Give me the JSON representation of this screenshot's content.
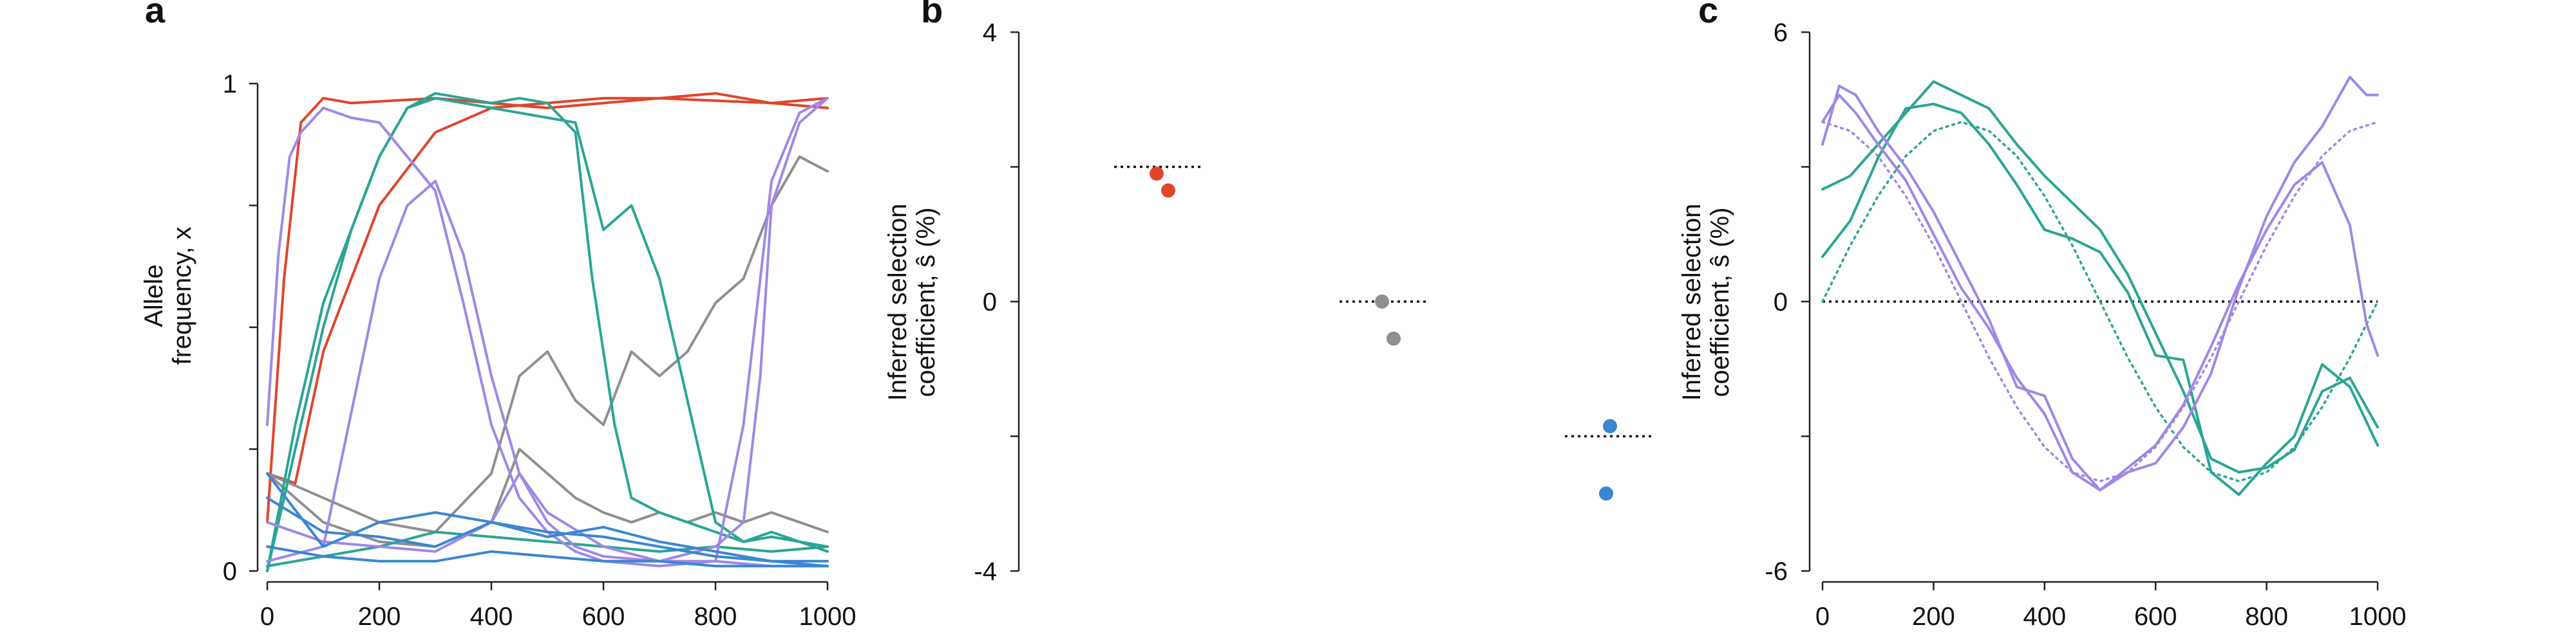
{
  "colors": {
    "red": "#e0452b",
    "gray": "#8f8f8f",
    "teal": "#2aa594",
    "purple": "#a087e6",
    "blue": "#3a86d0",
    "axis": "#222222"
  },
  "chart_data": [
    {
      "panel_label": "a",
      "type": "line",
      "xlabel": "",
      "ylabel_line1": "Allele",
      "ylabel_line2": "frequency, x",
      "xlim": [
        0,
        1000
      ],
      "ylim": [
        0,
        1
      ],
      "xticks": [
        "0",
        "200",
        "400",
        "600",
        "800",
        "1000"
      ],
      "yticks": [
        "0",
        "1"
      ],
      "grid": false,
      "series": [
        {
          "color": "red",
          "x": [
            0,
            50,
            100,
            150,
            200,
            300,
            400,
            500,
            600,
            700,
            800,
            900,
            1000
          ],
          "y": [
            0.2,
            0.18,
            0.45,
            0.6,
            0.75,
            0.9,
            0.95,
            0.96,
            0.97,
            0.97,
            0.98,
            0.96,
            0.95
          ]
        },
        {
          "color": "red",
          "x": [
            0,
            30,
            60,
            100,
            150,
            300,
            500,
            700,
            900,
            1000
          ],
          "y": [
            0.1,
            0.6,
            0.92,
            0.97,
            0.96,
            0.97,
            0.95,
            0.97,
            0.96,
            0.97
          ]
        },
        {
          "color": "gray",
          "x": [
            0,
            100,
            200,
            300,
            400,
            450,
            500,
            550,
            600,
            650,
            700,
            750,
            800,
            850,
            900,
            950,
            1000
          ],
          "y": [
            0.2,
            0.15,
            0.1,
            0.08,
            0.2,
            0.4,
            0.45,
            0.35,
            0.3,
            0.45,
            0.4,
            0.45,
            0.55,
            0.6,
            0.75,
            0.85,
            0.82
          ]
        },
        {
          "color": "gray",
          "x": [
            0,
            100,
            200,
            300,
            400,
            450,
            500,
            550,
            600,
            650,
            700,
            750,
            800,
            850,
            900,
            950,
            1000
          ],
          "y": [
            0.2,
            0.1,
            0.06,
            0.05,
            0.1,
            0.25,
            0.2,
            0.15,
            0.12,
            0.1,
            0.12,
            0.1,
            0.12,
            0.1,
            0.12,
            0.1,
            0.08
          ]
        },
        {
          "color": "teal",
          "x": [
            0,
            50,
            100,
            150,
            200,
            250,
            300,
            350,
            400,
            450,
            500,
            550,
            600,
            650,
            700,
            750,
            800,
            850,
            900,
            950,
            1000
          ],
          "y": [
            0.0,
            0.3,
            0.55,
            0.7,
            0.85,
            0.95,
            0.97,
            0.96,
            0.95,
            0.94,
            0.93,
            0.92,
            0.7,
            0.75,
            0.6,
            0.35,
            0.1,
            0.06,
            0.08,
            0.06,
            0.04
          ]
        },
        {
          "color": "teal",
          "x": [
            0,
            50,
            100,
            150,
            200,
            250,
            300,
            350,
            400,
            450,
            500,
            550,
            580,
            620,
            650,
            700,
            750,
            800,
            850,
            900,
            950,
            1000
          ],
          "y": [
            0.0,
            0.25,
            0.5,
            0.7,
            0.85,
            0.95,
            0.98,
            0.97,
            0.96,
            0.97,
            0.96,
            0.9,
            0.6,
            0.3,
            0.15,
            0.12,
            0.1,
            0.08,
            0.06,
            0.07,
            0.06,
            0.05
          ]
        },
        {
          "color": "teal",
          "x": [
            0,
            100,
            200,
            300,
            400,
            500,
            600,
            700,
            800,
            900,
            1000
          ],
          "y": [
            0.01,
            0.03,
            0.05,
            0.08,
            0.07,
            0.06,
            0.05,
            0.04,
            0.05,
            0.04,
            0.05
          ]
        },
        {
          "color": "purple",
          "x": [
            0,
            20,
            40,
            60,
            100,
            150,
            200,
            250,
            300,
            350,
            400,
            450,
            500,
            550,
            600,
            700,
            800,
            850,
            900,
            950,
            1000
          ],
          "y": [
            0.3,
            0.65,
            0.85,
            0.9,
            0.95,
            0.93,
            0.92,
            0.85,
            0.78,
            0.55,
            0.3,
            0.15,
            0.08,
            0.04,
            0.02,
            0.01,
            0.02,
            0.3,
            0.8,
            0.94,
            0.97
          ]
        },
        {
          "color": "purple",
          "x": [
            0,
            100,
            200,
            250,
            300,
            350,
            400,
            450,
            500,
            550,
            600,
            700,
            800,
            850,
            880,
            900,
            950,
            1000
          ],
          "y": [
            0.02,
            0.05,
            0.6,
            0.75,
            0.8,
            0.65,
            0.4,
            0.2,
            0.1,
            0.05,
            0.03,
            0.02,
            0.05,
            0.1,
            0.4,
            0.75,
            0.92,
            0.97
          ]
        },
        {
          "color": "purple",
          "x": [
            0,
            100,
            200,
            300,
            400,
            450,
            500,
            600,
            700,
            800,
            900,
            1000
          ],
          "y": [
            0.1,
            0.06,
            0.05,
            0.04,
            0.1,
            0.2,
            0.12,
            0.05,
            0.02,
            0.02,
            0.01,
            0.01
          ]
        },
        {
          "color": "blue",
          "x": [
            0,
            100,
            200,
            300,
            400,
            500,
            600,
            700,
            800,
            900,
            1000
          ],
          "y": [
            0.15,
            0.08,
            0.07,
            0.05,
            0.1,
            0.08,
            0.07,
            0.05,
            0.03,
            0.02,
            0.01
          ]
        },
        {
          "color": "blue",
          "x": [
            0,
            100,
            200,
            300,
            400,
            500,
            600,
            700,
            800,
            900,
            1000
          ],
          "y": [
            0.2,
            0.05,
            0.1,
            0.12,
            0.1,
            0.07,
            0.09,
            0.06,
            0.04,
            0.02,
            0.02
          ]
        },
        {
          "color": "blue",
          "x": [
            0,
            100,
            200,
            300,
            400,
            500,
            600,
            700,
            800,
            900,
            1000
          ],
          "y": [
            0.05,
            0.03,
            0.02,
            0.02,
            0.04,
            0.03,
            0.02,
            0.02,
            0.01,
            0.01,
            0.01
          ]
        }
      ]
    },
    {
      "panel_label": "b",
      "type": "scatter",
      "ylabel_line1": "Inferred selection",
      "ylabel_line2": "coefficient, ŝ (%)",
      "ylim": [
        -4,
        4
      ],
      "yticks": [
        "4",
        "0",
        "-4"
      ],
      "grid": false,
      "groups": [
        {
          "color": "red",
          "true_value": 2.0,
          "estimates": [
            1.9,
            1.65
          ]
        },
        {
          "color": "gray",
          "true_value": 0.0,
          "estimates": [
            0.0,
            -0.55
          ]
        },
        {
          "color": "blue",
          "true_value": -2.0,
          "estimates": [
            -1.85,
            -2.85
          ]
        }
      ]
    },
    {
      "panel_label": "c",
      "type": "line",
      "xlabel": "",
      "ylabel_line1": "Inferred selection",
      "ylabel_line2": "coefficient, ŝ (%)",
      "xlim": [
        0,
        1000
      ],
      "ylim": [
        -6,
        6
      ],
      "xticks": [
        "0",
        "200",
        "400",
        "600",
        "800",
        "1000"
      ],
      "yticks": [
        "6",
        "0",
        "-6"
      ],
      "grid": false,
      "true_curves": [
        {
          "color": "teal",
          "x": [
            0,
            50,
            100,
            150,
            200,
            250,
            300,
            350,
            400,
            450,
            500,
            550,
            600,
            650,
            700,
            750,
            800,
            850,
            900,
            950,
            1000
          ],
          "y": [
            0.0,
            1.25,
            2.35,
            3.24,
            3.8,
            4.0,
            3.8,
            3.24,
            2.35,
            1.25,
            0.0,
            -1.25,
            -2.35,
            -3.24,
            -3.8,
            -4.0,
            -3.8,
            -3.24,
            -2.35,
            -1.25,
            0.0
          ]
        },
        {
          "color": "purple",
          "x": [
            0,
            50,
            100,
            150,
            200,
            250,
            300,
            350,
            400,
            450,
            500,
            550,
            600,
            650,
            700,
            750,
            800,
            850,
            900,
            950,
            1000
          ],
          "y": [
            4.0,
            3.8,
            3.24,
            2.35,
            1.25,
            0.0,
            -1.25,
            -2.35,
            -3.24,
            -3.8,
            -4.0,
            -3.8,
            -3.24,
            -2.35,
            -1.25,
            0.0,
            1.25,
            2.35,
            3.24,
            3.8,
            4.0
          ]
        }
      ],
      "inferred_series": [
        {
          "color": "teal",
          "x": [
            0,
            50,
            100,
            150,
            200,
            250,
            300,
            350,
            400,
            450,
            500,
            550,
            600,
            650,
            700,
            750,
            800,
            850,
            900,
            950,
            1000
          ],
          "y": [
            2.5,
            2.8,
            3.5,
            4.2,
            4.9,
            4.6,
            4.3,
            3.5,
            2.8,
            2.2,
            1.6,
            0.6,
            -0.7,
            -2.0,
            -3.5,
            -3.8,
            -3.7,
            -3.3,
            -2.0,
            -1.7,
            -2.8
          ]
        },
        {
          "color": "teal",
          "x": [
            0,
            50,
            100,
            150,
            200,
            250,
            300,
            350,
            400,
            450,
            500,
            550,
            600,
            650,
            700,
            750,
            800,
            850,
            900,
            950,
            1000
          ],
          "y": [
            1.0,
            1.8,
            3.2,
            4.3,
            4.4,
            4.2,
            3.5,
            2.6,
            1.6,
            1.4,
            1.1,
            0.2,
            -1.2,
            -1.3,
            -3.8,
            -4.3,
            -3.6,
            -3.0,
            -1.4,
            -1.9,
            -3.2
          ]
        },
        {
          "color": "purple",
          "x": [
            0,
            30,
            60,
            100,
            150,
            200,
            250,
            300,
            350,
            400,
            450,
            500,
            550,
            600,
            650,
            700,
            750,
            800,
            850,
            900,
            950,
            980,
            1000
          ],
          "y": [
            3.5,
            4.8,
            4.6,
            3.8,
            3.0,
            2.0,
            0.8,
            -0.4,
            -1.9,
            -2.1,
            -3.5,
            -4.2,
            -3.8,
            -3.6,
            -2.8,
            -1.6,
            0.3,
            1.9,
            3.1,
            3.9,
            5.0,
            4.6,
            4.6
          ]
        },
        {
          "color": "purple",
          "x": [
            0,
            30,
            60,
            100,
            150,
            200,
            250,
            300,
            350,
            400,
            450,
            500,
            550,
            600,
            650,
            700,
            750,
            800,
            850,
            900,
            950,
            980,
            1000
          ],
          "y": [
            4.0,
            4.6,
            4.2,
            3.5,
            2.7,
            1.5,
            0.3,
            -0.6,
            -1.7,
            -2.5,
            -3.8,
            -4.2,
            -3.7,
            -3.2,
            -2.3,
            -1.0,
            0.4,
            1.6,
            2.6,
            3.1,
            1.7,
            -0.5,
            -1.2
          ]
        }
      ]
    }
  ]
}
